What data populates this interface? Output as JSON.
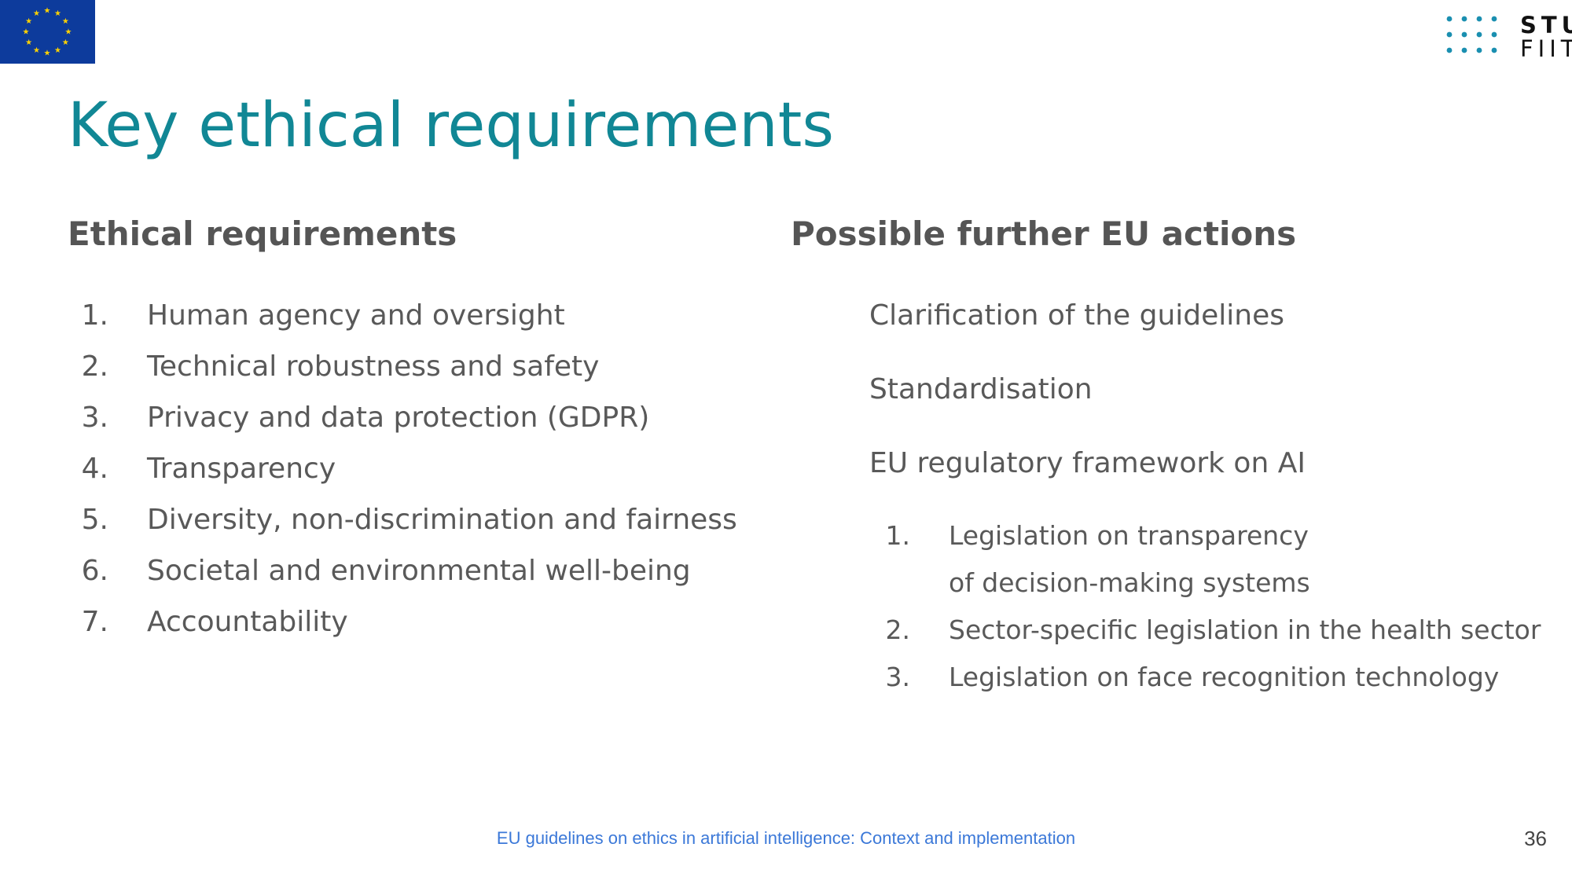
{
  "slide": {
    "title": "Key ethical requirements",
    "left": {
      "heading": "Ethical requirements",
      "items": [
        {
          "num": "1.",
          "text": "Human agency and oversight"
        },
        {
          "num": "2.",
          "text": "Technical robustness and safety"
        },
        {
          "num": "3.",
          "text": "Privacy and data protection (GDPR)"
        },
        {
          "num": "4.",
          "text": "Transparency"
        },
        {
          "num": "5.",
          "text": "Diversity, non-discrimination and fairness"
        },
        {
          "num": "6.",
          "text": "Societal and environmental well-being"
        },
        {
          "num": "7.",
          "text": "Accountability"
        }
      ]
    },
    "right": {
      "heading": "Possible further EU actions",
      "actions": [
        "Clarification of the guidelines",
        "Standardisation",
        "EU regulatory framework on AI"
      ],
      "sub_items": [
        {
          "num": "1.",
          "text": "Legislation on transparency of decision-making systems"
        },
        {
          "num": "2.",
          "text": "Sector-specific legislation in the health sector"
        },
        {
          "num": "3.",
          "text": "Legislation on face recognition technology"
        }
      ]
    },
    "footer": "EU guidelines on ethics in artificial intelligence: Context and implementation",
    "page_number": "36"
  },
  "logos": {
    "eu_flag": "eu-flag-icon",
    "institution": {
      "line1": "STU",
      "line2": "FIIT"
    }
  },
  "colors": {
    "title": "#118795",
    "heading": "#555555",
    "body": "#595959",
    "footer": "#3b78d8",
    "eu_blue": "#0d3b9c",
    "eu_star": "#ffd200",
    "logo_dots": "#1a8fb0"
  }
}
